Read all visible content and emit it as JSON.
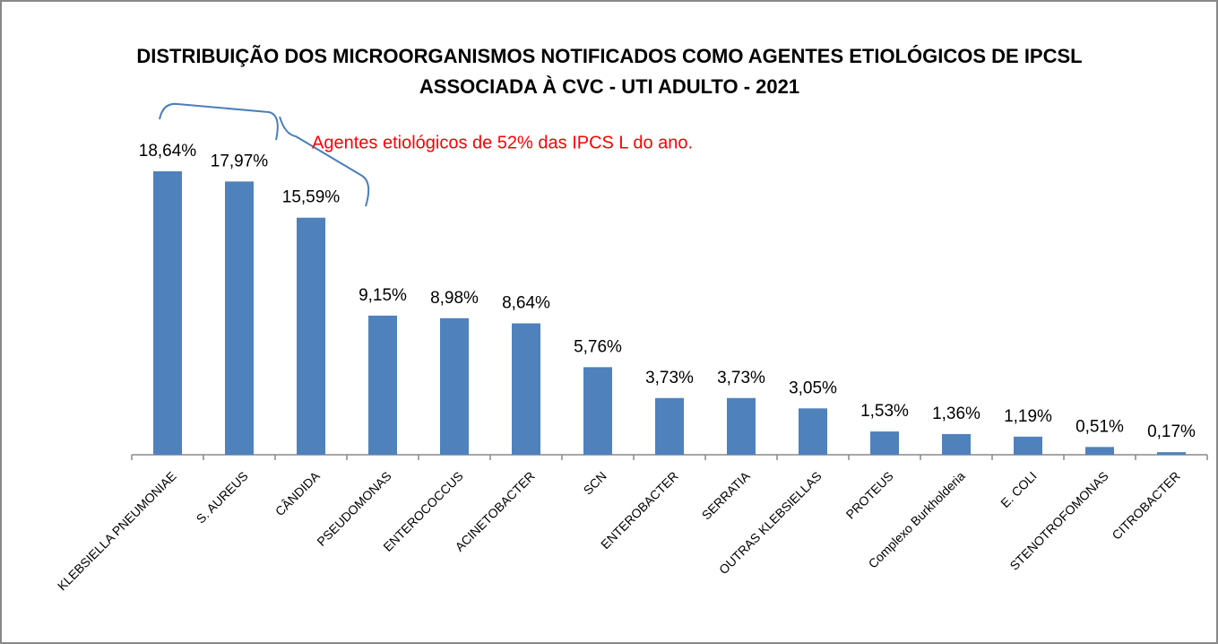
{
  "chart_data": {
    "type": "bar",
    "title": [
      "DISTRIBUIÇÃO DOS MICROORGANISMOS NOTIFICADOS COMO AGENTES ETIOLÓGICOS DE IPCSL",
      "ASSOCIADA À CVC  - UTI ADULTO - 2021"
    ],
    "annotation": "Agentes etiológicos de 52% das IPCS L do ano.",
    "categories": [
      "KLEBSIELLA  PNEUMONIAE",
      "S. AUREUS",
      "CÂNDIDA",
      "PSEUDOMONAS",
      "ENTEROCOCCUS",
      "ACINETOBACTER",
      "SCN",
      "ENTEROBACTER",
      "SERRATIA",
      "OUTRAS KLEBSIELLAS",
      "PROTEUS",
      "Complexo Burkholderia",
      "E. COLI",
      "STENOTROFOMONAS",
      "CITROBACTER"
    ],
    "values": [
      18.64,
      17.97,
      15.59,
      9.15,
      8.98,
      8.64,
      5.76,
      3.73,
      3.73,
      3.05,
      1.53,
      1.36,
      1.19,
      0.51,
      0.17
    ],
    "value_labels": [
      "18,64%",
      "17,97%",
      "15,59%",
      "9,15%",
      "8,98%",
      "8,64%",
      "5,76%",
      "3,73%",
      "3,73%",
      "3,05%",
      "1,53%",
      "1,36%",
      "1,19%",
      "0,51%",
      "0,17%"
    ],
    "color": "#4f81bd"
  }
}
